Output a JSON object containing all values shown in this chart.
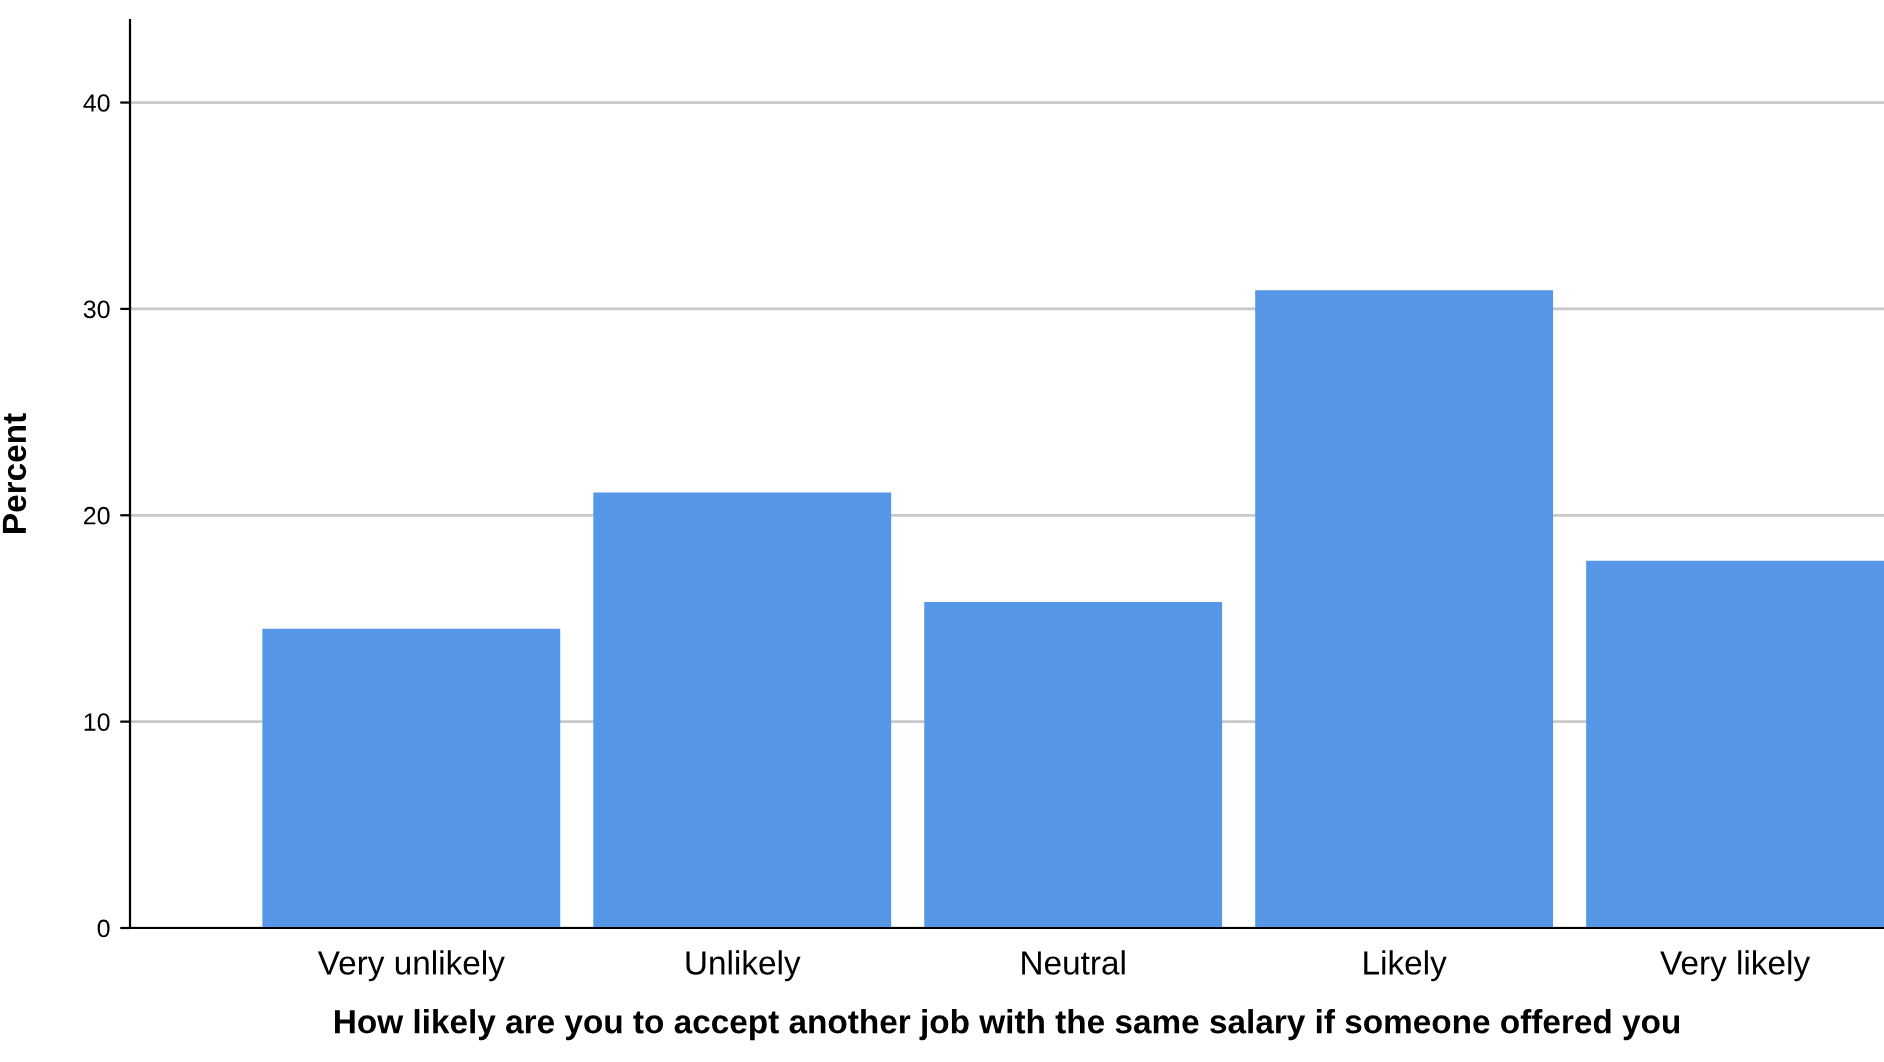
{
  "chart_data": {
    "type": "bar",
    "xlabel": "How likely are you to accept another job with the same salary if someone offered you",
    "ylabel": "Percent",
    "categories": [
      "Very unlikely",
      "Unlikely",
      "Neutral",
      "Likely",
      "Very likely"
    ],
    "values": [
      14.5,
      21.1,
      15.8,
      30.9,
      17.8
    ],
    "color": "#5596e6",
    "ylim": [
      0,
      44
    ],
    "yticks": [
      0,
      10,
      20,
      30,
      40
    ],
    "grid": "y"
  }
}
